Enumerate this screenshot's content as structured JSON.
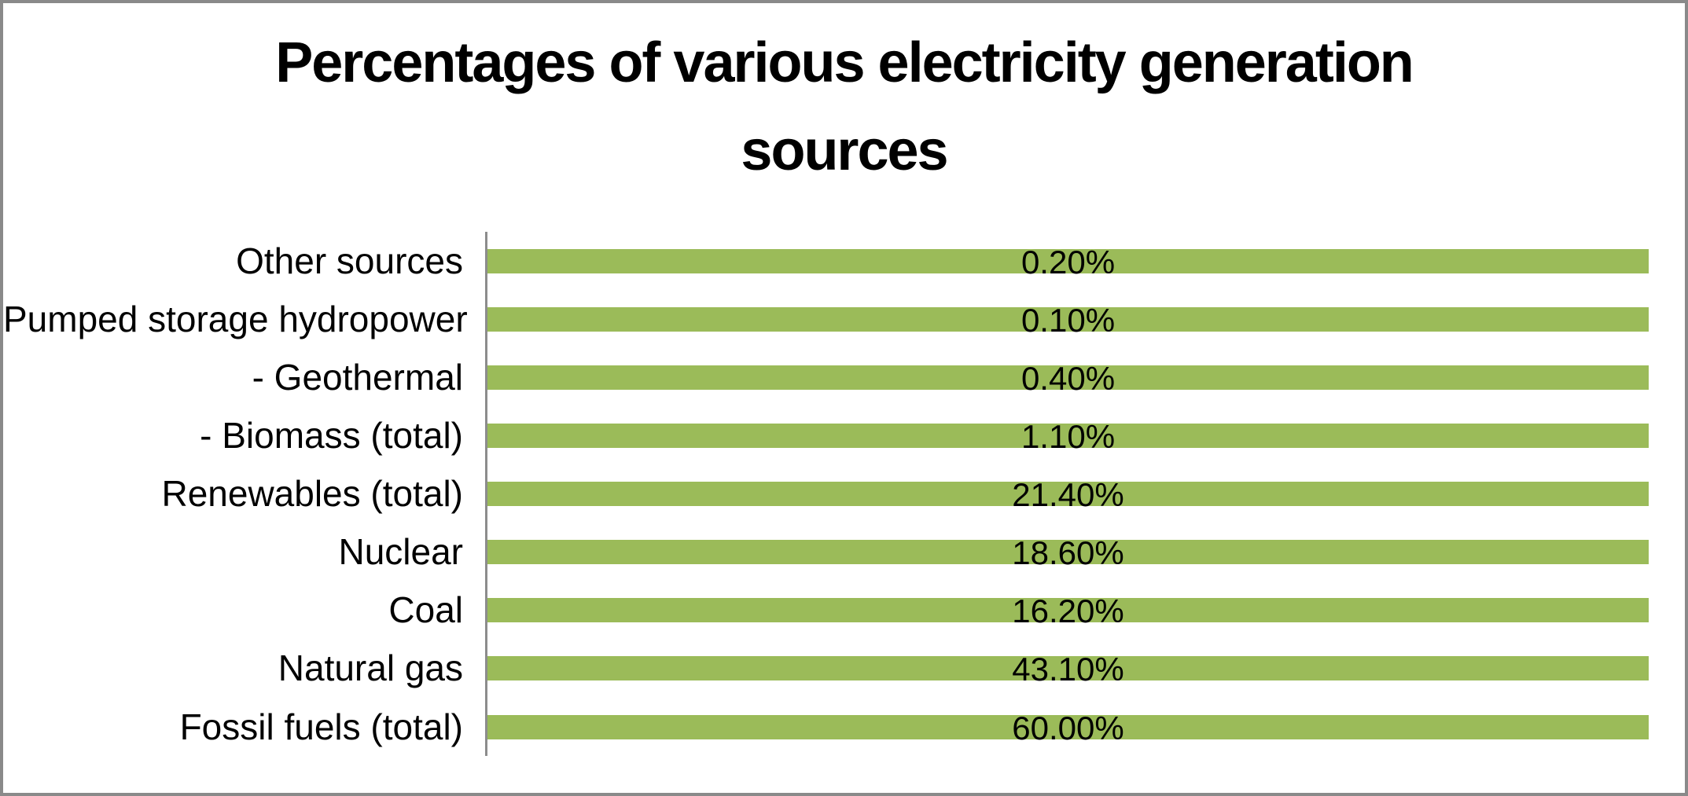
{
  "window": {
    "background_color": "#ffffff",
    "border_color": "#8a8a8a"
  },
  "chart_data": {
    "type": "bar",
    "orientation": "horizontal",
    "title": "Percentages of various electricity generation sources",
    "title_lines": [
      "Percentages of various electricity generation",
      "sources"
    ],
    "categories": [
      "Other sources",
      "Pumped storage hydropower",
      "- Geothermal",
      "- Biomass (total)",
      "Renewables (total)",
      "Nuclear",
      "Coal",
      "Natural gas",
      "Fossil fuels (total)"
    ],
    "values": [
      0.2,
      0.1,
      0.4,
      1.1,
      21.4,
      18.6,
      16.2,
      43.1,
      60.0
    ],
    "value_labels": [
      "0.20%",
      "0.10%",
      "0.40%",
      "1.10%",
      "21.40%",
      "18.60%",
      "16.20%",
      "43.10%",
      "60.00%"
    ],
    "xlabel": "",
    "ylabel": "",
    "legend": "none",
    "gridlines": false,
    "x_axis_tick_labels": "none",
    "value_label_position": "center-of-bar",
    "bars_rendered_full_width": true,
    "bar_color": "#9bbb59",
    "axis_line_color": "#8c8c8c",
    "text_color": "#000000"
  }
}
